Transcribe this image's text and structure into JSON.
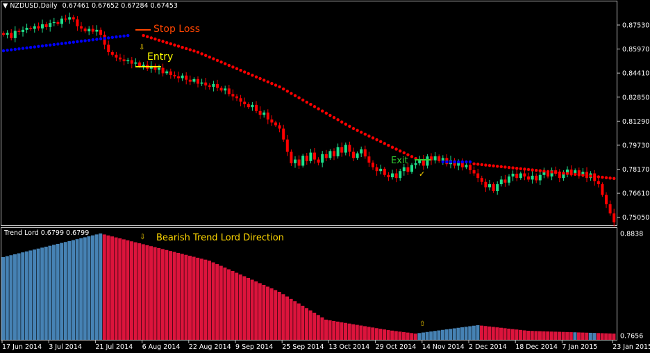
{
  "header": {
    "symbol": "NZDUSD,Daily",
    "ohlc": "0.67461 0.67652 0.67284 0.67453"
  },
  "indicator_header": "Trend Lord 0.6799 0.6799",
  "annotations": {
    "stop_loss": "Stop Loss",
    "entry": "Entry",
    "exit": "Exit",
    "bearish": "Bearish Trend Lord Direction",
    "down_arrow": "⇩",
    "up_arrow": "⇧",
    "check": "✓"
  },
  "colors": {
    "bull": "#1ee08a",
    "bear": "#ff0000",
    "stop_bear": "#ff0000",
    "stop_bull": "#0000ff",
    "tl_bull": "#4682b4",
    "tl_bear": "#dc143c",
    "stop_loss": "#ff4500",
    "entry": "#ffff00",
    "exit": "#32cd32"
  },
  "chart_data": [
    {
      "type": "candlestick",
      "title": "NZDUSD,Daily",
      "y_ticks": [
        "0.87530",
        "0.85970",
        "0.84410",
        "0.82850",
        "0.81290",
        "0.79730",
        "0.78170",
        "0.76610",
        "0.75050"
      ],
      "x_ticks": [
        "17 Jun 2014",
        "3 Jul 2014",
        "21 Jul 2014",
        "6 Aug 2014",
        "22 Aug 2014",
        "9 Sep 2014",
        "25 Sep 2014",
        "13 Oct 2014",
        "29 Oct 2014",
        "14 Nov 2014",
        "2 Dec 2014",
        "18 Dec 2014",
        "7 Jan 2015",
        "23 Jan 2015"
      ],
      "closes": [
        0.869,
        0.8702,
        0.8668,
        0.8715,
        0.8708,
        0.8722,
        0.8735,
        0.8728,
        0.8745,
        0.8731,
        0.8758,
        0.874,
        0.8766,
        0.8772,
        0.876,
        0.8795,
        0.8788,
        0.8803,
        0.879,
        0.8745,
        0.873,
        0.8712,
        0.8728,
        0.871,
        0.8722,
        0.869,
        0.8625,
        0.8577,
        0.856,
        0.8542,
        0.853,
        0.8518,
        0.8525,
        0.8502,
        0.851,
        0.8487,
        0.8495,
        0.847,
        0.8488,
        0.8462,
        0.8475,
        0.844,
        0.8452,
        0.8428,
        0.842,
        0.8408,
        0.8425,
        0.8398,
        0.8385,
        0.8402,
        0.8372,
        0.838,
        0.8361,
        0.8352,
        0.837,
        0.8345,
        0.8328,
        0.8341,
        0.8305,
        0.829,
        0.8278,
        0.8255,
        0.8239,
        0.822,
        0.8235,
        0.8195,
        0.817,
        0.8185,
        0.814,
        0.812,
        0.8102,
        0.8081,
        0.801,
        0.793,
        0.7856,
        0.788,
        0.784,
        0.7905,
        0.787,
        0.7925,
        0.788,
        0.786,
        0.7915,
        0.789,
        0.7935,
        0.7901,
        0.796,
        0.7925,
        0.7975,
        0.793,
        0.789,
        0.792,
        0.7946,
        0.79,
        0.786,
        0.783,
        0.7805,
        0.782,
        0.778,
        0.7765,
        0.779,
        0.776,
        0.7805,
        0.783,
        0.78,
        0.7845,
        0.7856,
        0.788,
        0.784,
        0.79,
        0.7875,
        0.7901,
        0.787,
        0.789,
        0.785,
        0.7875,
        0.784,
        0.786,
        0.783,
        0.7845,
        0.7811,
        0.779,
        0.776,
        0.7735,
        0.77,
        0.772,
        0.7675,
        0.772,
        0.775,
        0.773,
        0.777,
        0.7788,
        0.776,
        0.779,
        0.777,
        0.775,
        0.7775,
        0.7745,
        0.778,
        0.78,
        0.777,
        0.781,
        0.7788,
        0.776,
        0.7795,
        0.7815,
        0.779,
        0.781,
        0.778,
        0.78,
        0.776,
        0.779,
        0.774,
        0.772,
        0.765,
        0.759,
        0.753,
        0.7472
      ],
      "trailing_stop": [
        {
          "trend": "bull",
          "points": [
            [
              0,
              0.8586
            ],
            [
              32,
              0.8685
            ]
          ]
        },
        {
          "trend": "bear",
          "points": [
            [
              36,
              0.8685
            ],
            [
              50,
              0.8577
            ],
            [
              71,
              0.8352
            ],
            [
              90,
              0.8081
            ],
            [
              106,
              0.7887
            ]
          ]
        },
        {
          "trend": "bull",
          "points": [
            [
              113,
              0.7865
            ],
            [
              120,
              0.7865
            ]
          ]
        },
        {
          "trend": "bear",
          "points": [
            [
              121,
              0.7852
            ],
            [
              157,
              0.7757
            ]
          ]
        }
      ]
    },
    {
      "type": "bar",
      "title": "Trend Lord",
      "y_ticks": [
        "0.8838",
        "0.7656"
      ],
      "points": [
        [
          0,
          0.8565
        ],
        [
          25,
          0.8838
        ],
        [
          35,
          0.8725
        ],
        [
          53,
          0.8524
        ],
        [
          71,
          0.8163
        ],
        [
          83,
          0.7841
        ],
        [
          99,
          0.772
        ],
        [
          106,
          0.768
        ],
        [
          122,
          0.7777
        ],
        [
          135,
          0.7712
        ],
        [
          157,
          0.768
        ]
      ],
      "bull_ranges": [
        [
          0,
          25
        ],
        [
          107,
          122
        ],
        [
          147,
          147
        ],
        [
          151,
          152
        ]
      ]
    }
  ]
}
